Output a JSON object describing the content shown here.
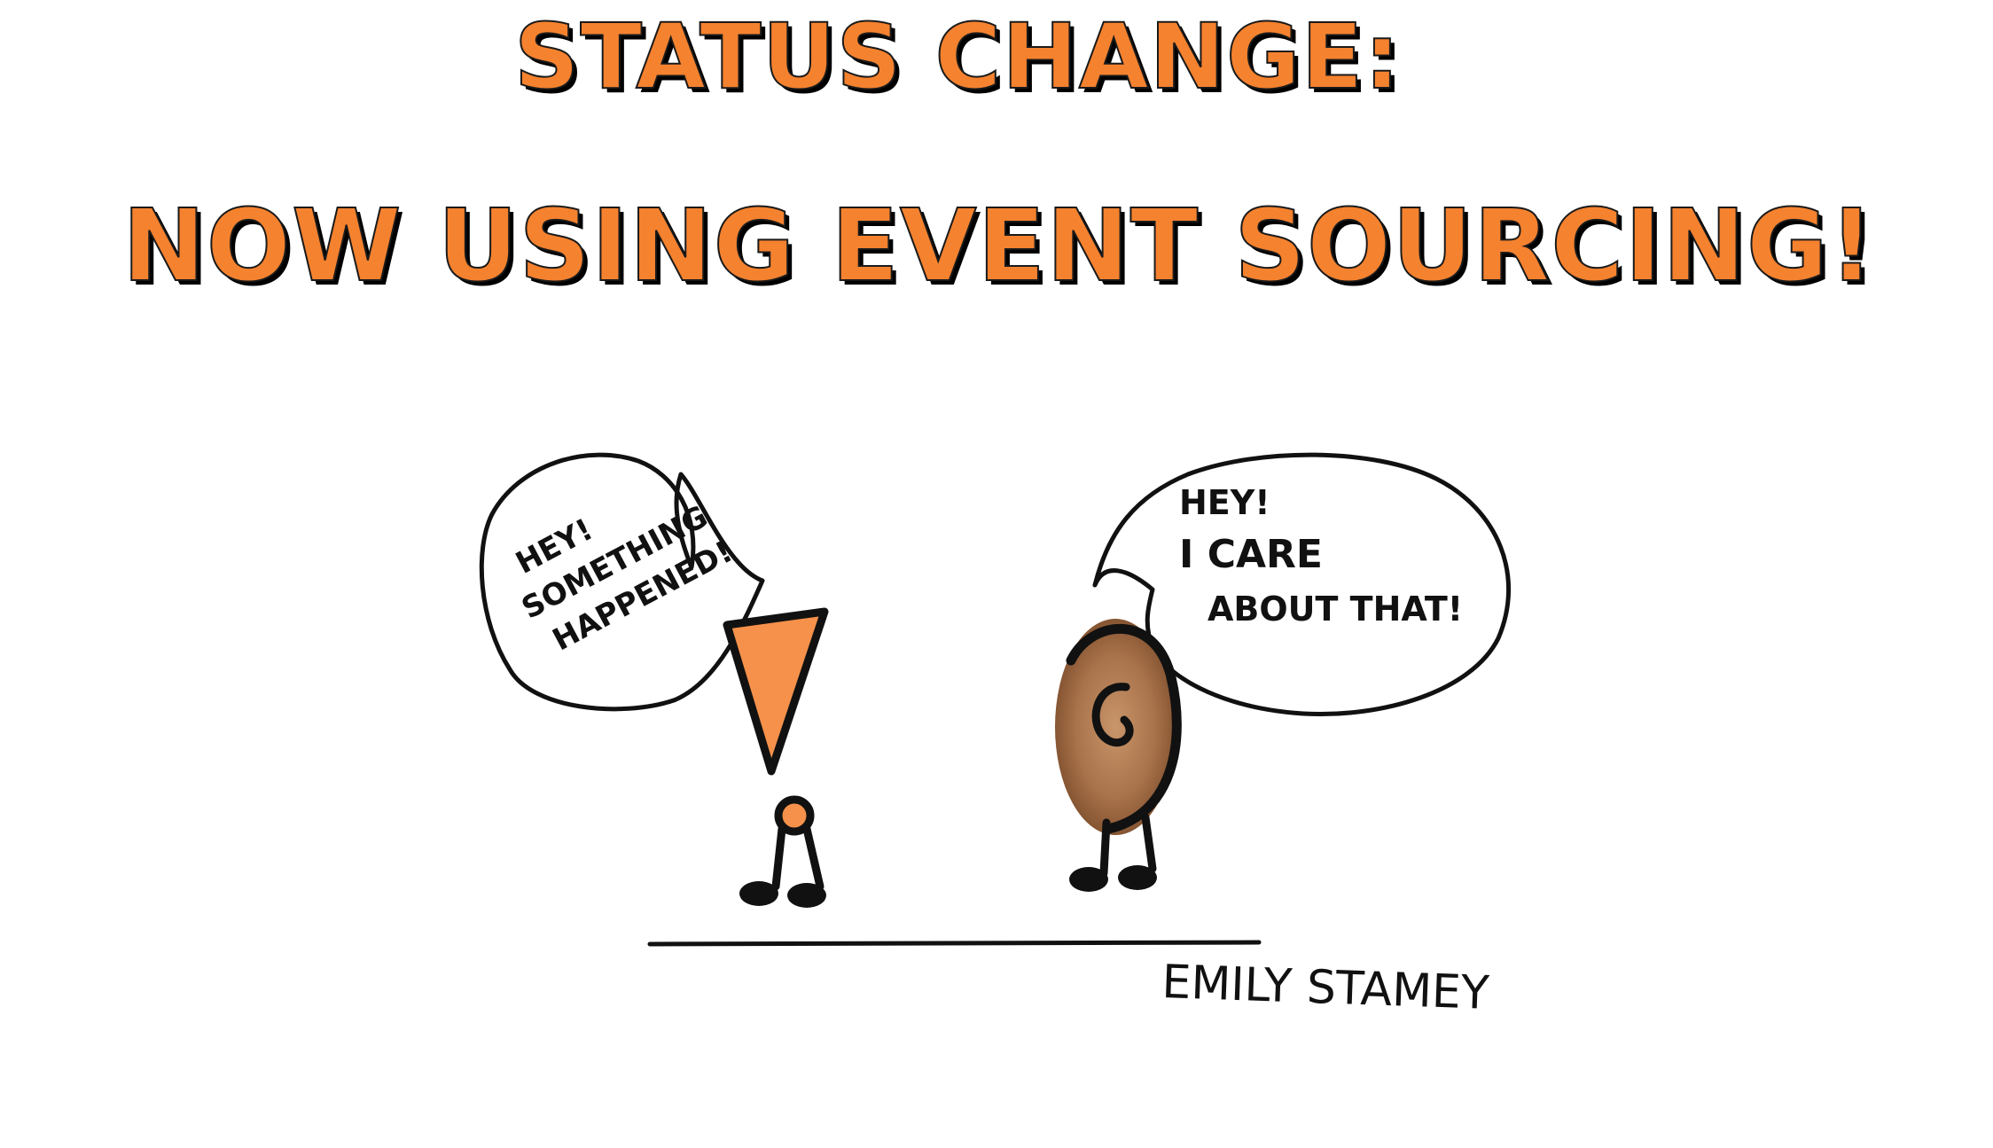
{
  "title": {
    "line1": "STATUS CHANGE:",
    "line2": "NOW USING EVENT SOURCING!"
  },
  "speaker_bubble": {
    "line1": "HEY!",
    "line2": "SOMETHING",
    "line3": "HAPPENED!"
  },
  "listener_bubble": {
    "line1": "HEY!",
    "line2": "I CARE",
    "line3": "ABOUT THAT!"
  },
  "signature": "EMILY STAMEY",
  "colors": {
    "title_fill": "#f5822f",
    "speaker_fill": "#f5914a",
    "ear_fill": "#a8724a",
    "ink": "#111111"
  },
  "icons": {
    "speaker": "exclamation-mark-character-icon",
    "listener": "ear-character-icon"
  }
}
